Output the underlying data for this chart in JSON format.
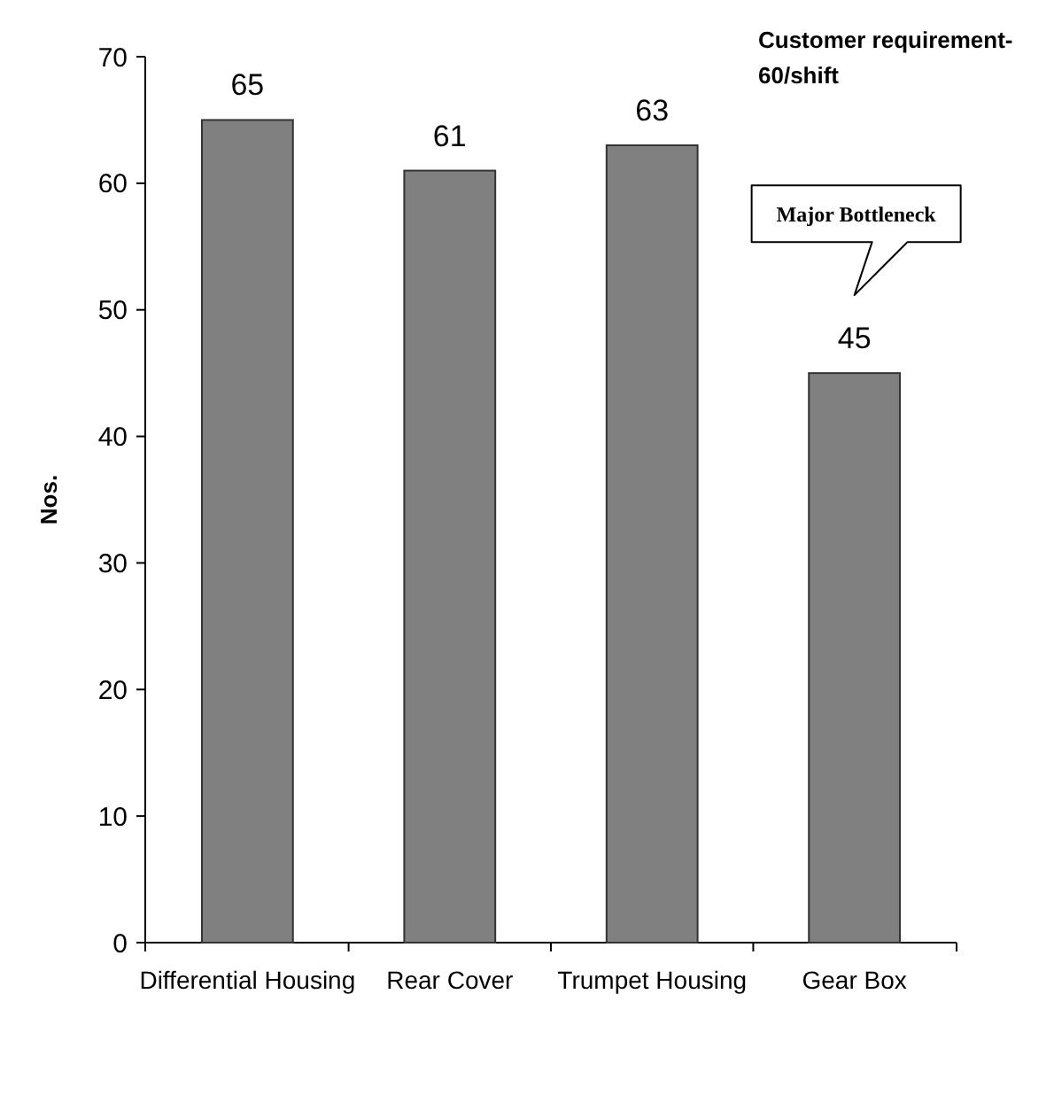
{
  "chart_data": {
    "type": "bar",
    "ylabel": "Nos.",
    "categories": [
      "Differential Housing",
      "Rear Cover",
      "Trumpet Housing",
      "Gear Box"
    ],
    "values": [
      65,
      61,
      63,
      45
    ],
    "color": "#808080",
    "data_labels": true,
    "ylim": [
      0,
      70
    ],
    "yticks": [
      0,
      10,
      20,
      30,
      40,
      50,
      60,
      70
    ],
    "grid": false,
    "annotations": [
      "Customer requirement-\n60/shift",
      "Major Bottleneck"
    ]
  }
}
